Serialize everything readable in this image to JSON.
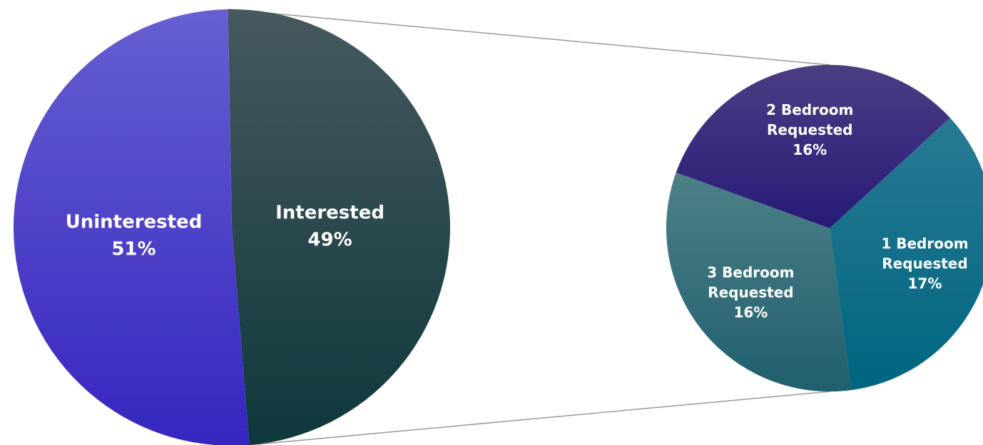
{
  "chart_data": {
    "type": "pie",
    "main_pie": {
      "slices": [
        {
          "label": "Interested",
          "percent_text": "49%",
          "value": 49,
          "color_top": "#46595f",
          "color_bottom": "#0f383c"
        },
        {
          "label": "Uninterested",
          "percent_text": "51%",
          "value": 51,
          "color_top": "#675fd2",
          "color_bottom": "#3526bf"
        }
      ]
    },
    "breakdown_pie": {
      "of": "Interested",
      "slices": [
        {
          "label_line1": "1 Bedroom",
          "label_line2": "Requested",
          "percent_text": "17%",
          "value": 17,
          "color_top": "#287a94",
          "color_bottom": "#006580"
        },
        {
          "label_line1": "3 Bedroom",
          "label_line2": "Requested",
          "percent_text": "16%",
          "value": 16,
          "color_top": "#4d8188",
          "color_bottom": "#205f6d"
        },
        {
          "label_line1": "2 Bedroom",
          "label_line2": "Requested",
          "percent_text": "16%",
          "value": 16,
          "color_top": "#4c3d84",
          "color_bottom": "#271b77"
        }
      ]
    },
    "connector_color": "#9a9a9a"
  }
}
